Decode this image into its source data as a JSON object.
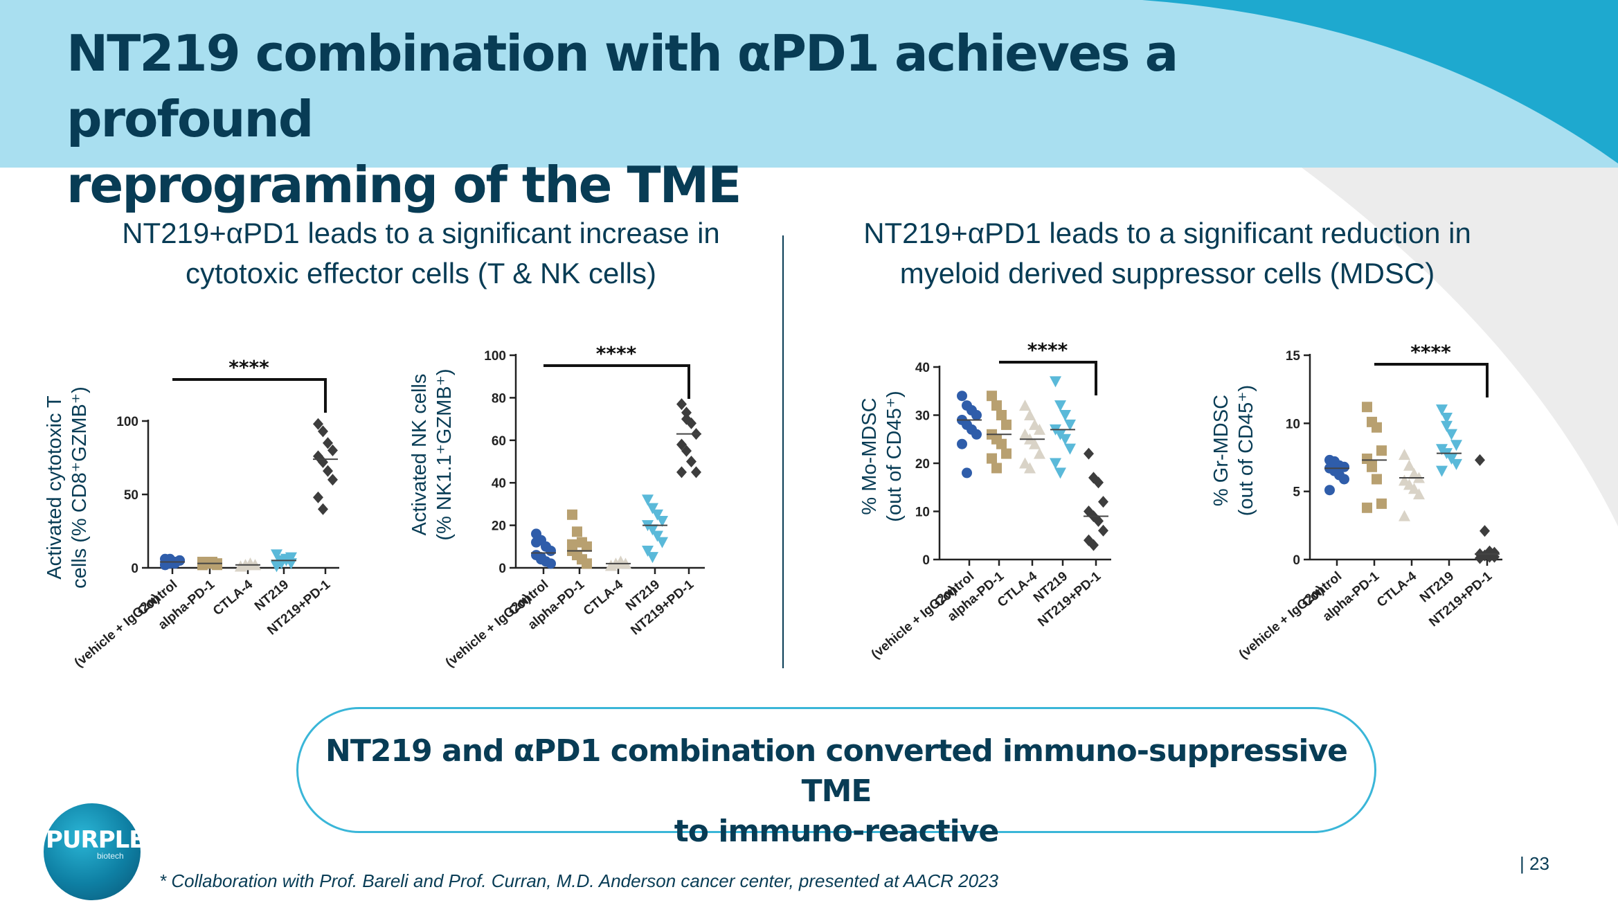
{
  "title_line1": "NT219 combination with αPD1 achieves a profound",
  "title_line2": "reprograming of the TME",
  "left_heading": {
    "line1": "NT219+αPD1 leads to a significant increase in",
    "line2": "cytotoxic effector cells (T & NK cells)"
  },
  "right_heading": {
    "line1": "NT219+αPD1 leads to a significant reduction in",
    "line2": "myeloid derived suppressor cells (MDSC)"
  },
  "callout": {
    "line1": "NT219 and αPD1 combination converted immuno-suppressive TME",
    "line2": "to immuno-reactive"
  },
  "footnote": "* Collaboration with Prof. Bareli and Prof. Curran, M.D. Anderson cancer center, presented at AACR 2023",
  "page_number": "| 23",
  "logo": {
    "text": "PURPLE",
    "sub": "biotech"
  },
  "colors": {
    "control": "#2f5daa",
    "alpha_pd1": "#b8a070",
    "ctla4": "#d9d3c7",
    "nt219": "#5ab9d9",
    "combo": "#3d3d3d",
    "title": "#083c55",
    "banner": "#a9dff0",
    "accent": "#1ea9cf"
  },
  "chart_data": [
    {
      "type": "scatter",
      "ylabel_line1": "Activated cytotoxic T",
      "ylabel_line2": "cells (% CD8⁺GZMB⁺)",
      "ylim": [
        0,
        100
      ],
      "yticks": [
        0,
        50,
        100
      ],
      "categories": [
        [
          "Control",
          "(vehicle + IgG2α)"
        ],
        [
          "alpha-PD-1"
        ],
        [
          "CTLA-4"
        ],
        [
          "NT219"
        ],
        [
          "NT219+PD-1"
        ]
      ],
      "markers": [
        "circle",
        "square",
        "triangle-up",
        "triangle-down",
        "diamond"
      ],
      "significance": {
        "label": "****",
        "from": 0,
        "to": 4
      },
      "means": [
        4,
        3,
        2,
        5,
        74
      ],
      "values": [
        [
          2,
          3,
          4,
          5,
          6,
          4,
          3,
          5,
          2,
          6
        ],
        [
          2,
          3,
          4,
          3,
          2,
          4,
          3,
          2,
          4
        ],
        [
          1,
          2,
          3,
          2,
          1,
          2,
          3,
          2
        ],
        [
          2,
          3,
          5,
          7,
          9,
          4,
          6,
          3,
          1,
          5
        ],
        [
          98,
          93,
          85,
          80,
          76,
          72,
          66,
          60,
          48,
          40
        ]
      ]
    },
    {
      "type": "scatter",
      "ylabel_line1": "Activated NK cells",
      "ylabel_line2": "(% NK1.1⁺GZMB⁺)",
      "ylim": [
        0,
        100
      ],
      "yticks": [
        0,
        20,
        40,
        60,
        80,
        100
      ],
      "categories": [
        [
          "Control",
          "(vehicle + IgG2α)"
        ],
        [
          "alpha-PD-1"
        ],
        [
          "CTLA-4"
        ],
        [
          "NT219"
        ],
        [
          "NT219+PD-1"
        ]
      ],
      "markers": [
        "circle",
        "square",
        "triangle-up",
        "triangle-down",
        "diamond"
      ],
      "significance": {
        "label": "****",
        "from": 0,
        "to": 4
      },
      "means": [
        7,
        8,
        2,
        20,
        63
      ],
      "values": [
        [
          16,
          13,
          10,
          8,
          6,
          4,
          3,
          2,
          12,
          5
        ],
        [
          25,
          17,
          12,
          10,
          8,
          6,
          4,
          2,
          11
        ],
        [
          1,
          2,
          3,
          2,
          1,
          2
        ],
        [
          32,
          28,
          25,
          22,
          20,
          18,
          15,
          12,
          8,
          5
        ],
        [
          77,
          73,
          68,
          63,
          58,
          55,
          50,
          45,
          45,
          70
        ]
      ]
    },
    {
      "type": "scatter",
      "ylabel_line1": "% Mo-MDSC",
      "ylabel_line2": "(out of CD45⁺)",
      "ylim": [
        0,
        40
      ],
      "yticks": [
        0,
        10,
        20,
        30,
        40
      ],
      "categories": [
        [
          "Control",
          "(vehicle + IgG2α)"
        ],
        [
          "alpha-PD-1"
        ],
        [
          "CTLA-4"
        ],
        [
          "NT219"
        ],
        [
          "NT219+PD-1"
        ]
      ],
      "markers": [
        "circle",
        "square",
        "triangle-up",
        "triangle-down",
        "diamond"
      ],
      "significance": {
        "label": "****",
        "from": 1,
        "to": 4
      },
      "means": [
        29,
        26,
        25,
        27,
        9
      ],
      "values": [
        [
          34,
          32,
          31,
          30,
          29,
          28,
          27,
          26,
          24,
          18
        ],
        [
          34,
          32,
          30,
          28,
          26,
          25,
          24,
          22,
          21,
          19
        ],
        [
          32,
          30,
          28,
          27,
          26,
          25,
          24,
          22,
          20,
          19
        ],
        [
          37,
          32,
          30,
          28,
          27,
          26,
          25,
          23,
          20,
          18
        ],
        [
          22,
          17,
          16,
          12,
          10,
          9,
          8,
          6,
          4,
          3
        ]
      ]
    },
    {
      "type": "scatter",
      "ylabel_line1": "% Gr-MDSC",
      "ylabel_line2": "(out of CD45⁺)",
      "ylim": [
        0,
        15
      ],
      "yticks": [
        0,
        5,
        10,
        15
      ],
      "categories": [
        [
          "Control",
          "(vehicle + IgG2α)"
        ],
        [
          "alpha-PD-1"
        ],
        [
          "CTLA-4"
        ],
        [
          "NT219"
        ],
        [
          "NT219+PD-1"
        ]
      ],
      "markers": [
        "circle",
        "square",
        "triangle-up",
        "triangle-down",
        "diamond"
      ],
      "significance": {
        "label": "****",
        "from": 1,
        "to": 4
      },
      "means": [
        6.7,
        7.3,
        6,
        7.8,
        0.4
      ],
      "values": [
        [
          7.3,
          7.0,
          6.9,
          6.8,
          6.7,
          6.5,
          6.2,
          5.9,
          5.1,
          7.2
        ],
        [
          11.2,
          10.1,
          9.7,
          8.0,
          7.4,
          6.8,
          5.9,
          4.1,
          3.8,
          6.9
        ],
        [
          7.7,
          6.9,
          6.3,
          6.0,
          5.8,
          5.5,
          5.2,
          4.8,
          3.2
        ],
        [
          11.0,
          10.4,
          9.2,
          8.4,
          8.1,
          7.8,
          7.4,
          7.0,
          6.5,
          9.8
        ],
        [
          7.3,
          2.1,
          0.6,
          0.5,
          0.4,
          0.3,
          0.2,
          0.2,
          0.1
        ]
      ]
    }
  ]
}
